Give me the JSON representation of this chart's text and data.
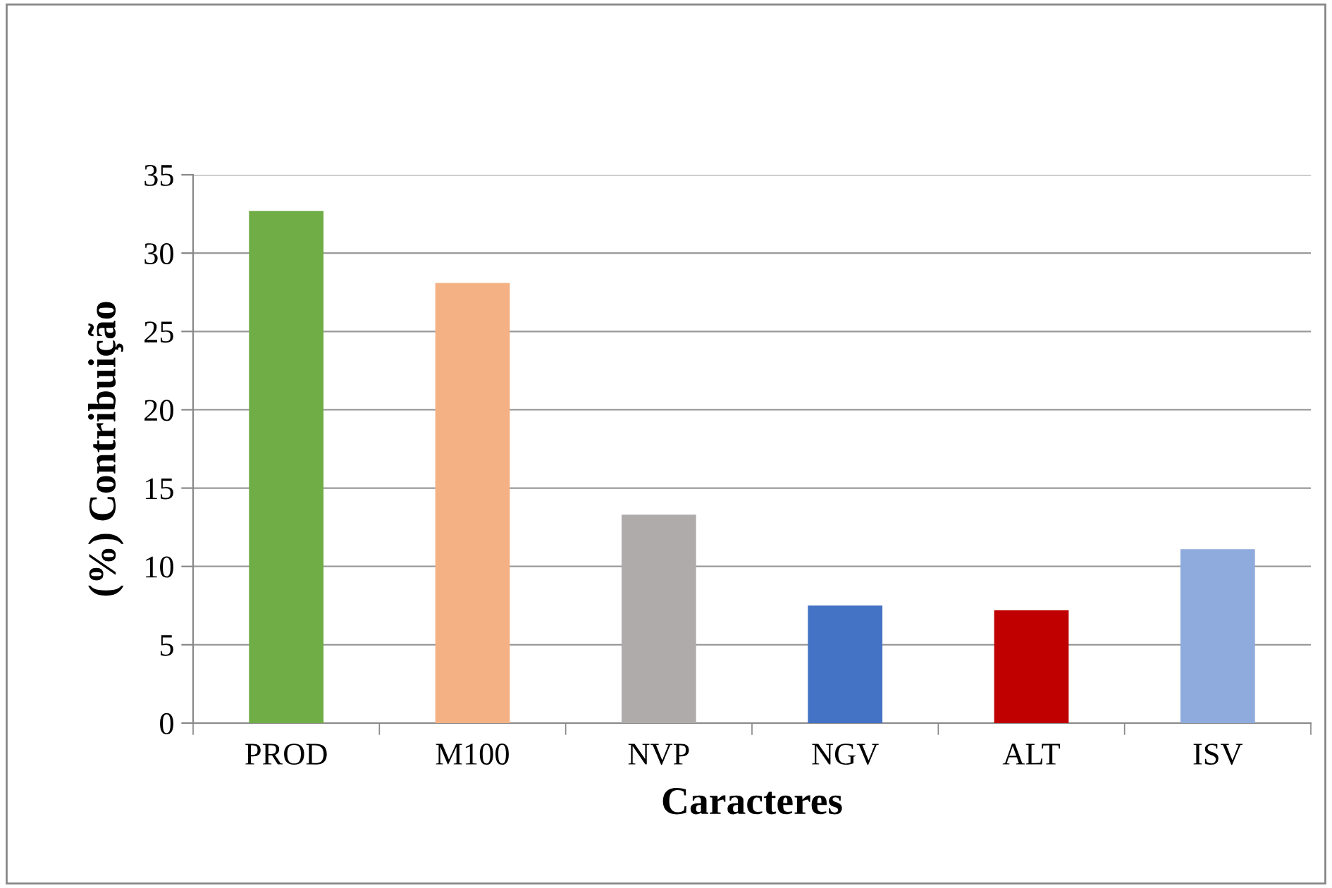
{
  "chart_data": {
    "type": "bar",
    "xlabel": "Caracteres",
    "ylabel": "(%) Contribuição",
    "categories": [
      "PROD",
      "M100",
      "NVP",
      "NGV",
      "ALT",
      "ISV"
    ],
    "values": [
      32.7,
      28.1,
      13.3,
      7.5,
      7.2,
      11.1
    ],
    "colors": [
      "#70ad47",
      "#f4b183",
      "#afabab",
      "#4472c4",
      "#c00000",
      "#8faadc"
    ],
    "ylim": [
      0,
      35
    ],
    "yticks": [
      0,
      5,
      10,
      15,
      20,
      25,
      30,
      35
    ],
    "grid": "y",
    "legend": false
  }
}
